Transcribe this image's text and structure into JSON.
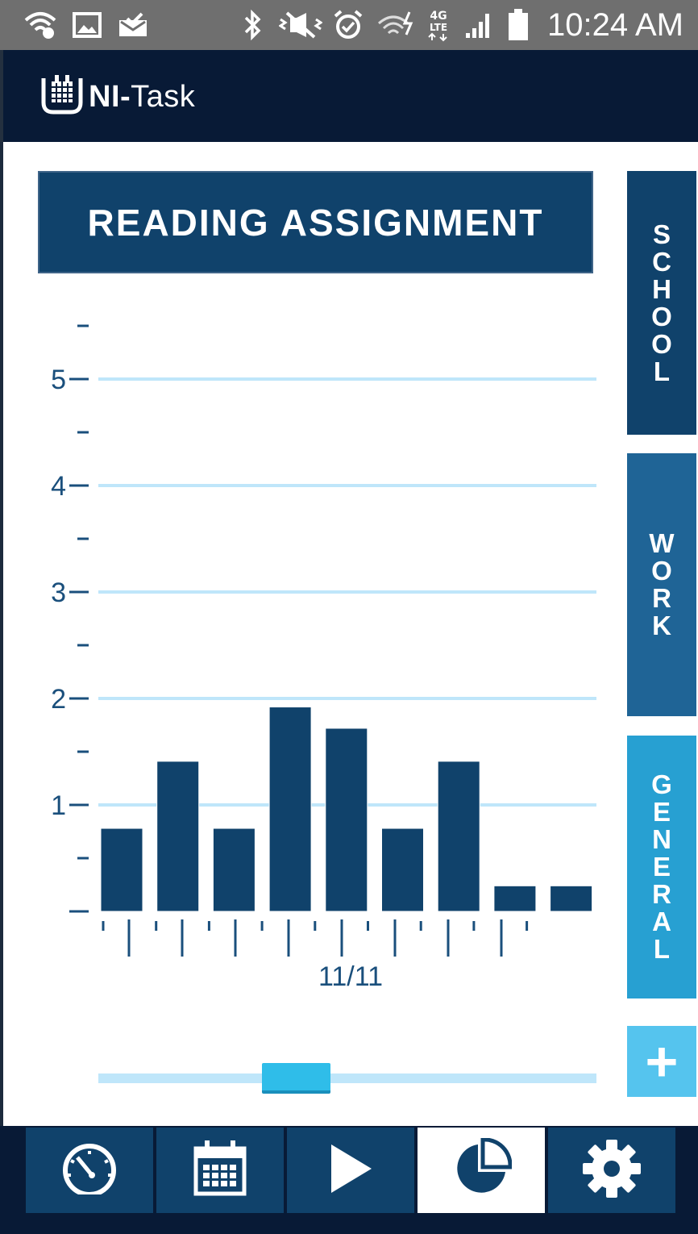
{
  "status_bar": {
    "time": "10:24 AM",
    "icons": [
      "wifi-icon",
      "image-icon",
      "mail-icon",
      "bluetooth-icon",
      "vibrate-icon",
      "alarm-icon",
      "wifi-data-icon",
      "lte-icon",
      "signal-icon",
      "battery-icon"
    ]
  },
  "app": {
    "logo_icon": "calendar-cup-icon",
    "logo_bold": "NI-",
    "logo_regular": "Task"
  },
  "task": {
    "title": "READING ASSIGNMENT"
  },
  "side_tabs": {
    "school": [
      "S",
      "C",
      "H",
      "O",
      "O",
      "L"
    ],
    "work": [
      "W",
      "O",
      "R",
      "K"
    ],
    "general": [
      "G",
      "E",
      "N",
      "E",
      "R",
      "A",
      "L"
    ],
    "add_label": "+"
  },
  "chart_data": {
    "type": "bar",
    "title": "",
    "xlabel": "11/11",
    "ylabel": "",
    "y_ticks": [
      "5",
      "4",
      "3",
      "2",
      "1"
    ],
    "ylim": [
      0,
      5.5
    ],
    "values": [
      0.78,
      1.41,
      0.78,
      1.92,
      1.72,
      0.78,
      1.41,
      0.24,
      0.24
    ],
    "grid": true,
    "colors": {
      "bar": "#10426b",
      "grid": "#bfe6fa",
      "axis_text": "#1a4f7c"
    }
  },
  "slider": {
    "position": 0.38
  },
  "nav": {
    "items": [
      {
        "name": "dashboard",
        "icon": "speedometer-icon"
      },
      {
        "name": "calendar",
        "icon": "calendar-icon"
      },
      {
        "name": "play",
        "icon": "play-icon"
      },
      {
        "name": "stats",
        "icon": "pie-chart-icon"
      },
      {
        "name": "settings",
        "icon": "gear-icon"
      }
    ],
    "active": "stats"
  }
}
